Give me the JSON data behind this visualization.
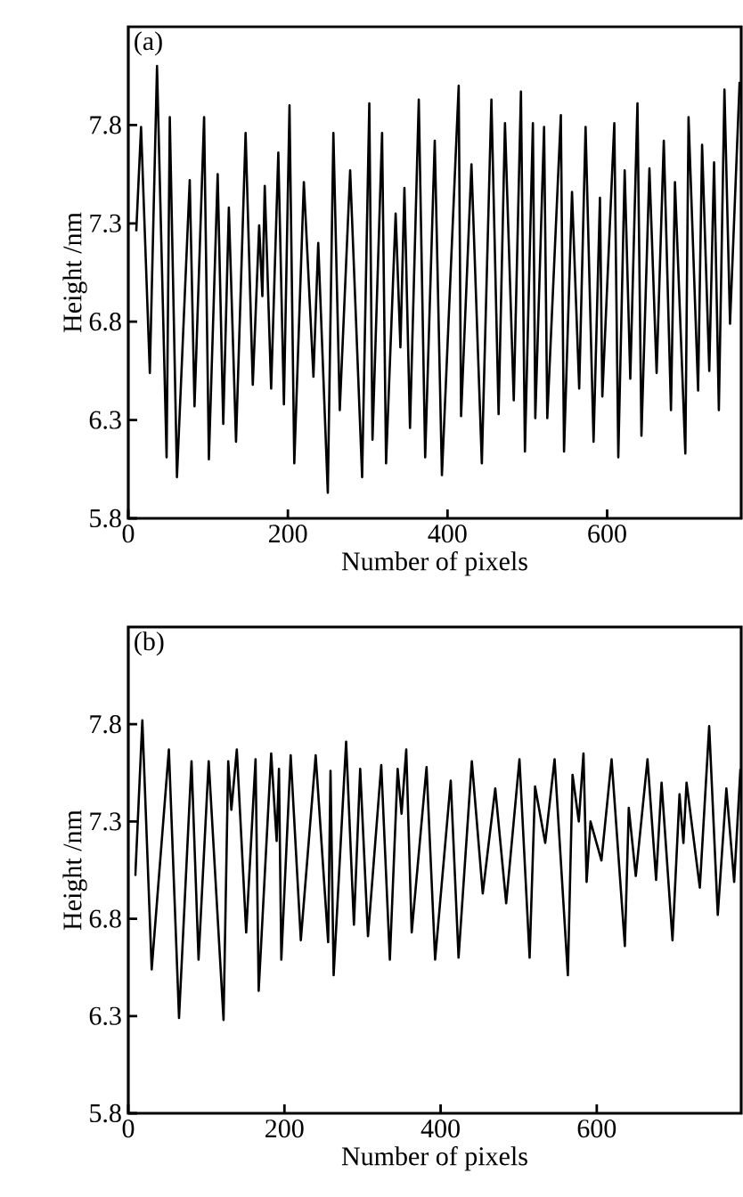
{
  "chart_data": [
    {
      "type": "line",
      "xlabel": "Number of pixels",
      "ylabel": "Height /nm",
      "annotations": [
        "(a)"
      ],
      "xlim": [
        0,
        768
      ],
      "ylim": [
        5.8,
        8.3
      ],
      "xticks": [
        0,
        200,
        400,
        600
      ],
      "yticks": [
        5.8,
        6.3,
        6.8,
        7.3,
        7.8
      ],
      "series": [
        {
          "color": "#000000",
          "x": [
            10,
            16,
            27,
            36,
            48,
            52,
            61,
            77,
            83,
            95,
            101,
            112,
            119,
            126,
            135,
            147,
            156,
            164,
            168,
            171,
            179,
            188,
            195,
            202,
            208,
            220,
            232,
            238,
            250,
            257,
            265,
            278,
            293,
            302,
            306,
            318,
            323,
            335,
            341,
            346,
            353,
            364,
            372,
            384,
            393,
            414,
            417,
            430,
            443,
            455,
            464,
            472,
            483,
            492,
            497,
            507,
            510,
            521,
            525,
            542,
            546,
            556,
            565,
            573,
            583,
            591,
            594,
            609,
            614,
            622,
            629,
            638,
            643,
            653,
            662,
            671,
            680,
            685,
            698,
            702,
            714,
            719,
            728,
            734,
            740,
            747,
            754,
            766
          ],
          "values": [
            7.26,
            7.79,
            6.54,
            8.1,
            6.11,
            7.84,
            6.01,
            7.52,
            6.37,
            7.84,
            6.1,
            7.55,
            6.28,
            7.38,
            6.19,
            7.76,
            6.48,
            7.29,
            6.93,
            7.49,
            6.46,
            7.66,
            6.38,
            7.9,
            6.08,
            7.51,
            6.52,
            7.2,
            5.93,
            7.76,
            6.35,
            7.57,
            6.01,
            7.91,
            6.2,
            7.76,
            6.08,
            7.35,
            6.67,
            7.48,
            6.26,
            7.93,
            6.11,
            7.72,
            6.02,
            8.0,
            6.32,
            7.6,
            6.08,
            7.93,
            6.33,
            7.81,
            6.4,
            7.97,
            6.14,
            7.81,
            6.31,
            7.79,
            6.31,
            7.85,
            6.14,
            7.46,
            6.46,
            7.79,
            6.19,
            7.43,
            6.42,
            7.81,
            6.11,
            7.57,
            6.51,
            7.91,
            6.22,
            7.58,
            6.54,
            7.72,
            6.35,
            7.51,
            6.13,
            7.84,
            6.45,
            7.7,
            6.55,
            7.61,
            6.35,
            7.98,
            6.79,
            8.02
          ]
        }
      ]
    },
    {
      "type": "line",
      "xlabel": "Number of pixels",
      "ylabel": "Height /nm",
      "annotations": [
        "(b)"
      ],
      "xlim": [
        0,
        785
      ],
      "ylim": [
        5.8,
        8.3
      ],
      "xticks": [
        0,
        200,
        400,
        600
      ],
      "yticks": [
        5.8,
        6.3,
        6.8,
        7.3,
        7.8
      ],
      "series": [
        {
          "color": "#000000",
          "x": [
            9,
            18,
            30,
            52,
            65,
            81,
            90,
            103,
            122,
            128,
            132,
            139,
            151,
            163,
            167,
            183,
            190,
            193,
            196,
            208,
            221,
            240,
            256,
            259,
            263,
            279,
            289,
            297,
            307,
            324,
            335,
            345,
            350,
            356,
            363,
            382,
            393,
            413,
            423,
            440,
            454,
            470,
            484,
            501,
            514,
            521,
            534,
            546,
            563,
            569,
            577,
            583,
            587,
            592,
            606,
            619,
            636,
            641,
            650,
            665,
            676,
            683,
            697,
            706,
            711,
            715,
            732,
            744,
            755,
            766,
            776,
            784
          ],
          "values": [
            7.02,
            7.82,
            6.54,
            7.67,
            6.29,
            7.61,
            6.59,
            7.61,
            6.28,
            7.61,
            7.36,
            7.67,
            6.73,
            7.62,
            6.43,
            7.65,
            7.2,
            7.57,
            6.59,
            7.64,
            6.69,
            7.64,
            6.68,
            7.56,
            6.51,
            7.71,
            6.77,
            7.57,
            6.71,
            7.59,
            6.59,
            7.57,
            7.34,
            7.67,
            6.73,
            7.58,
            6.59,
            7.51,
            6.6,
            7.61,
            6.93,
            7.47,
            6.88,
            7.62,
            6.6,
            7.48,
            7.19,
            7.62,
            6.51,
            7.54,
            7.3,
            7.65,
            6.99,
            7.3,
            7.1,
            7.62,
            6.66,
            7.37,
            7.02,
            7.62,
            7.0,
            7.5,
            6.69,
            7.44,
            7.19,
            7.5,
            6.96,
            7.79,
            6.82,
            7.47,
            6.99,
            7.57
          ]
        }
      ]
    }
  ]
}
